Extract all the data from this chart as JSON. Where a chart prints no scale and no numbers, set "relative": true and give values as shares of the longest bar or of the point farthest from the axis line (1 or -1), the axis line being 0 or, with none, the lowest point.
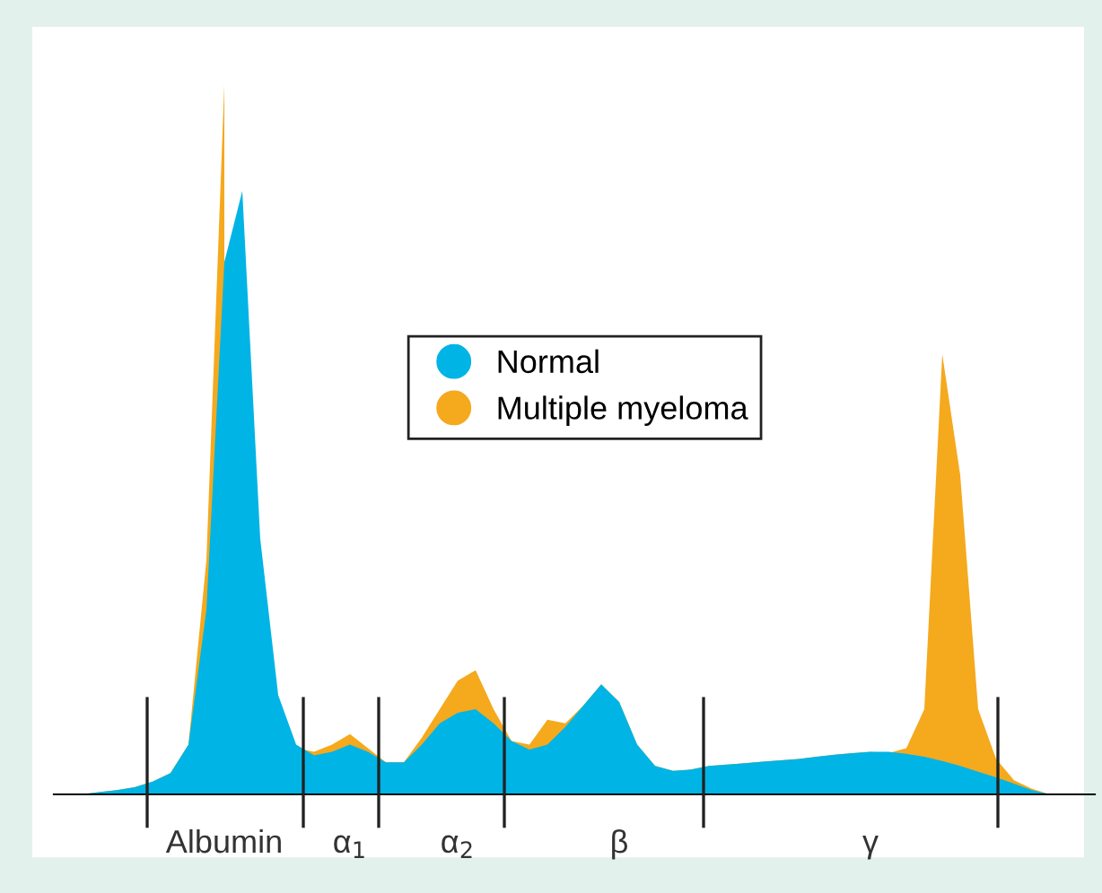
{
  "chart_data": {
    "type": "area",
    "relative": true,
    "legend": "center",
    "grid": false,
    "categories": [
      null,
      null,
      null,
      null,
      null,
      null,
      null,
      null,
      "Albumin",
      null,
      null,
      null,
      null,
      null,
      null,
      "α$_{1}$",
      null,
      null,
      null,
      null,
      null,
      "α$_{2}$",
      null,
      null,
      null,
      null,
      null,
      null,
      null,
      null,
      "β",
      null,
      null,
      null,
      null,
      null,
      null,
      null,
      null,
      null,
      null,
      null,
      null,
      null,
      "γ",
      null,
      null,
      null,
      null,
      null,
      null,
      null,
      null,
      null,
      null,
      null
    ],
    "series": [
      {
        "name": "Multiple myeloma",
        "color": "#f5a91d",
        "values": [
          0,
          0.003,
          0.006,
          0.01,
          0.018,
          0.03,
          0.07,
          0.33,
          1.0,
          null,
          null,
          null,
          0.065,
          0.06,
          0.07,
          0.085,
          0.065,
          0.045,
          0.045,
          0.08,
          0.12,
          0.16,
          0.175,
          0.12,
          0.075,
          0.07,
          0.105,
          0.1,
          0.125,
          0.155,
          0.13,
          0.07,
          0.04,
          0.033,
          0.035,
          0.04,
          0.042,
          0.044,
          0.046,
          0.048,
          0.05,
          0.053,
          0.056,
          0.058,
          0.06,
          0.058,
          0.065,
          0.12,
          0.62,
          0.45,
          0.12,
          0.05,
          0.02,
          0.008,
          0,
          0
        ]
      },
      {
        "name": "Normal",
        "color": "#00b4e6",
        "values": [
          0,
          0.003,
          0.006,
          0.01,
          0.018,
          0.03,
          0.07,
          0.26,
          0.75,
          0.85,
          0.36,
          0.14,
          0.07,
          0.055,
          0.06,
          0.07,
          0.06,
          0.045,
          0.045,
          0.07,
          0.1,
          0.115,
          0.12,
          0.1,
          0.075,
          0.063,
          0.07,
          0.095,
          0.125,
          0.155,
          0.13,
          0.07,
          0.04,
          0.033,
          0.035,
          0.04,
          0.042,
          0.044,
          0.046,
          0.048,
          0.05,
          0.053,
          0.056,
          0.058,
          0.06,
          0.06,
          0.057,
          0.053,
          0.047,
          0.04,
          0.032,
          0.024,
          0.015,
          0.006,
          0,
          0
        ]
      }
    ]
  }
}
